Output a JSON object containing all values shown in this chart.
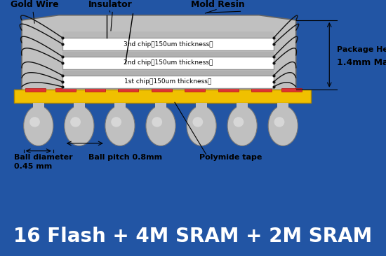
{
  "bg_color": "#2255a4",
  "diagram_bg": "#ffffff",
  "title_text": "16 Flash + 4M SRAM + 2M SRAM",
  "title_bg": "#1a3f8a",
  "title_color": "#ffffff",
  "title_fontsize": 20,
  "labels": {
    "gold_wire": "Gold Wire",
    "insulator": "Insulator",
    "mold_resin": "Mold Resin",
    "chip3": "3nd chip（150um thickness）",
    "chip2": "2nd chip（150um thickness）",
    "chip1": "1st chip（150um thickness）",
    "package_height_line1": "Package Height",
    "package_height_line2": "1.4mm Max",
    "ball_diameter_line1": "Ball diameter",
    "ball_diameter_line2": "0.45 mm",
    "ball_pitch": "Ball pitch 0.8mm",
    "polymide": "Polymide tape"
  },
  "mold_color": "#c0c0c0",
  "chip_color": "#ffffff",
  "substrate_color": "#f0c000",
  "ball_color": "#aaaaaa",
  "tape_color": "#dd3333",
  "wire_color": "#111111"
}
